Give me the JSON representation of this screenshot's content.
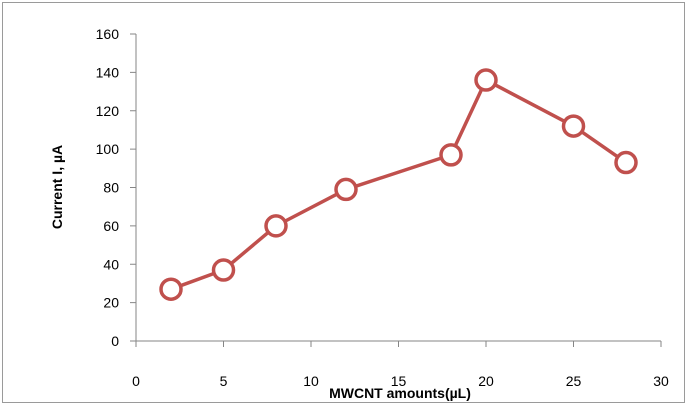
{
  "chart_data": {
    "type": "line",
    "title": "",
    "xlabel": "MWCNT amounts(µL)",
    "ylabel": "Current I, µA",
    "xlim": [
      0,
      30
    ],
    "ylim": [
      0,
      160
    ],
    "x_ticks": [
      0,
      5,
      10,
      15,
      20,
      25,
      30
    ],
    "y_ticks": [
      0,
      20,
      40,
      60,
      80,
      100,
      120,
      140,
      160
    ],
    "grid": false,
    "legend": "none",
    "series": [
      {
        "x": [
          2,
          5,
          8,
          12,
          18,
          20,
          25,
          28
        ],
        "y": [
          27,
          37,
          60,
          79,
          97,
          136,
          112,
          93
        ],
        "color": "#c0504d",
        "marker": "open-circle"
      }
    ]
  }
}
